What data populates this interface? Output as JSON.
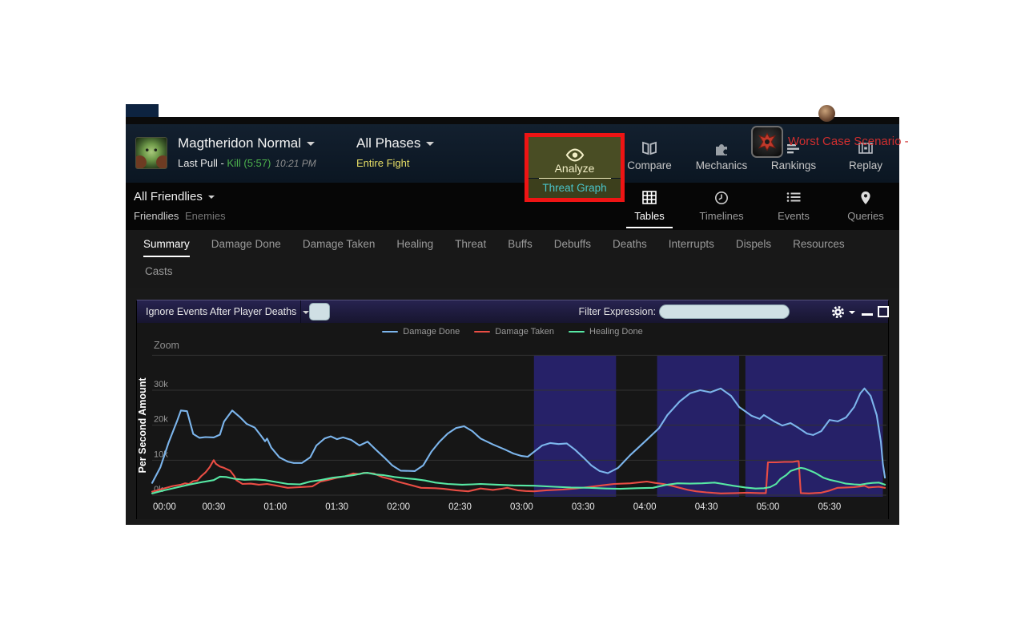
{
  "header": {
    "boss_name": "Magtheridon Normal",
    "pull_prefix": "Last Pull - ",
    "kill_text": "Kill (5:57)",
    "kill_time": "10:21 PM",
    "phase_dropdown": "All Phases",
    "phase_value": "Entire Fight",
    "guild_name": "Worst Case Scenario -",
    "buttons": {
      "analyze": "Analyze",
      "threat_graph": "Threat Graph",
      "compare": "Compare",
      "mechanics": "Mechanics",
      "rankings": "Rankings",
      "replay": "Replay"
    }
  },
  "nav": {
    "friendlies_dropdown": "All Friendlies",
    "friendlies": "Friendlies",
    "enemies": "Enemies",
    "views": [
      "Tables",
      "Timelines",
      "Events",
      "Queries"
    ]
  },
  "tabs": {
    "items": [
      "Summary",
      "Damage Done",
      "Damage Taken",
      "Healing",
      "Threat",
      "Buffs",
      "Debuffs",
      "Deaths",
      "Interrupts",
      "Dispels",
      "Resources"
    ],
    "second_row": [
      "Casts"
    ]
  },
  "panel": {
    "ignore_label": "Ignore Events After Player Deaths",
    "filter_label": "Filter Expression:",
    "filter_value": ""
  },
  "chart_data": {
    "type": "line",
    "ylabel": "Per Second Amount",
    "zoom_label": "Zoom",
    "x_unit": "mm:ss (seconds since pull)",
    "xlim": [
      0,
      357
    ],
    "ylim": [
      0,
      40000
    ],
    "y_ticks": [
      "0k",
      "10k",
      "20k",
      "30k"
    ],
    "x_ticks": [
      "00:00",
      "00:30",
      "01:00",
      "01:30",
      "02:00",
      "02:30",
      "03:00",
      "03:30",
      "04:00",
      "04:30",
      "05:00",
      "05:30"
    ],
    "grid": "horizontal",
    "legend_position": "top-center",
    "band_color": "#262168",
    "plot_bands": [
      {
        "from": 186,
        "to": 226
      },
      {
        "from": 246,
        "to": 286
      },
      {
        "from": 289,
        "to": 356
      }
    ],
    "series": [
      {
        "name": "Damage Done",
        "color": "#7cb5ec",
        "points": [
          [
            0,
            3.5
          ],
          [
            4,
            8
          ],
          [
            8,
            15
          ],
          [
            12,
            21
          ],
          [
            14,
            24.2
          ],
          [
            17,
            24
          ],
          [
            20,
            17.5
          ],
          [
            23,
            16.4
          ],
          [
            26,
            16.6
          ],
          [
            30,
            16.5
          ],
          [
            33,
            17.3
          ],
          [
            35,
            21
          ],
          [
            39,
            24.2
          ],
          [
            43,
            22.2
          ],
          [
            46,
            20.4
          ],
          [
            50,
            19.3
          ],
          [
            53,
            17
          ],
          [
            55,
            15.4
          ],
          [
            56,
            16.2
          ],
          [
            58,
            13.6
          ],
          [
            62,
            10.8
          ],
          [
            66,
            9.6
          ],
          [
            69,
            9.2
          ],
          [
            73,
            9.2
          ],
          [
            77,
            10.8
          ],
          [
            80,
            14.2
          ],
          [
            84,
            16.2
          ],
          [
            87,
            16.8
          ],
          [
            90,
            16
          ],
          [
            93,
            16.5
          ],
          [
            97,
            15.8
          ],
          [
            101,
            14.2
          ],
          [
            105,
            15.3
          ],
          [
            109,
            13
          ],
          [
            113,
            10.8
          ],
          [
            117,
            8.5
          ],
          [
            121,
            7
          ],
          [
            128,
            6.9
          ],
          [
            132,
            8.5
          ],
          [
            136,
            12.4
          ],
          [
            140,
            15.3
          ],
          [
            144,
            17.6
          ],
          [
            148,
            19.2
          ],
          [
            152,
            19.7
          ],
          [
            156,
            18.3
          ],
          [
            160,
            16.2
          ],
          [
            166,
            14.5
          ],
          [
            172,
            13
          ],
          [
            176,
            11.9
          ],
          [
            180,
            11.2
          ],
          [
            183,
            11
          ],
          [
            186,
            12.4
          ],
          [
            190,
            14.2
          ],
          [
            194,
            14.9
          ],
          [
            198,
            14.6
          ],
          [
            202,
            14.8
          ],
          [
            206,
            13
          ],
          [
            210,
            10.8
          ],
          [
            214,
            8.5
          ],
          [
            218,
            6.9
          ],
          [
            222,
            6.3
          ],
          [
            227,
            7.8
          ],
          [
            233,
            11.5
          ],
          [
            240,
            15.3
          ],
          [
            247,
            19.2
          ],
          [
            251,
            22.9
          ],
          [
            257,
            26.8
          ],
          [
            262,
            29.1
          ],
          [
            267,
            30
          ],
          [
            272,
            29.4
          ],
          [
            277,
            30.5
          ],
          [
            282,
            28.4
          ],
          [
            286,
            25.2
          ],
          [
            292,
            22.7
          ],
          [
            296,
            21.8
          ],
          [
            298,
            22.9
          ],
          [
            303,
            21.1
          ],
          [
            307,
            19.9
          ],
          [
            311,
            20.6
          ],
          [
            315,
            19.2
          ],
          [
            319,
            17.6
          ],
          [
            322,
            17.2
          ],
          [
            326,
            18.3
          ],
          [
            330,
            21.5
          ],
          [
            334,
            21.1
          ],
          [
            338,
            22.2
          ],
          [
            342,
            25.2
          ],
          [
            345,
            29.1
          ],
          [
            347,
            30.5
          ],
          [
            350,
            28.4
          ],
          [
            353,
            22.9
          ],
          [
            355,
            15.3
          ],
          [
            356,
            9
          ],
          [
            357,
            5
          ]
        ]
      },
      {
        "name": "Damage Taken",
        "color": "#ea4d44",
        "points": [
          [
            0,
            1
          ],
          [
            5,
            1.8
          ],
          [
            10,
            2.6
          ],
          [
            14,
            3
          ],
          [
            16,
            3.4
          ],
          [
            18,
            3.2
          ],
          [
            20,
            4
          ],
          [
            22,
            4.2
          ],
          [
            24,
            5.5
          ],
          [
            26,
            6.5
          ],
          [
            28,
            8
          ],
          [
            29,
            9
          ],
          [
            30,
            10
          ],
          [
            31,
            9
          ],
          [
            33,
            8.2
          ],
          [
            35,
            7.8
          ],
          [
            38,
            7
          ],
          [
            40,
            5.5
          ],
          [
            41,
            4.3
          ],
          [
            44,
            3.2
          ],
          [
            48,
            3.3
          ],
          [
            52,
            3
          ],
          [
            56,
            3.2
          ],
          [
            60,
            2.8
          ],
          [
            66,
            2.1
          ],
          [
            72,
            2.3
          ],
          [
            78,
            2.5
          ],
          [
            82,
            3.9
          ],
          [
            86,
            4.4
          ],
          [
            90,
            5
          ],
          [
            94,
            5.4
          ],
          [
            98,
            6.2
          ],
          [
            101,
            6
          ],
          [
            103,
            6.4
          ],
          [
            108,
            6.2
          ],
          [
            112,
            5.2
          ],
          [
            116,
            4.6
          ],
          [
            120,
            3.8
          ],
          [
            124,
            3.2
          ],
          [
            131,
            2.1
          ],
          [
            138,
            2
          ],
          [
            142,
            1.8
          ],
          [
            148,
            1.4
          ],
          [
            154,
            1.1
          ],
          [
            160,
            1.9
          ],
          [
            166,
            1.5
          ],
          [
            170,
            1.8
          ],
          [
            173,
            2.1
          ],
          [
            178,
            1.4
          ],
          [
            182,
            1.2
          ],
          [
            186,
            1.1
          ],
          [
            192,
            1.4
          ],
          [
            200,
            1.6
          ],
          [
            206,
            1.9
          ],
          [
            212,
            2.3
          ],
          [
            219,
            2.8
          ],
          [
            225,
            3.2
          ],
          [
            233,
            3.4
          ],
          [
            238,
            3.7
          ],
          [
            241,
            3.9
          ],
          [
            245,
            3.5
          ],
          [
            249,
            3.2
          ],
          [
            253,
            2.7
          ],
          [
            257,
            2.1
          ],
          [
            261,
            1.5
          ],
          [
            265,
            1.1
          ],
          [
            270,
            0.8
          ],
          [
            277,
            0.5
          ],
          [
            284,
            0.6
          ],
          [
            290,
            0.7
          ],
          [
            296,
            0.6
          ],
          [
            299,
            0.6
          ],
          [
            300,
            9.4
          ],
          [
            304,
            9.4
          ],
          [
            308,
            9.5
          ],
          [
            312,
            9.5
          ],
          [
            314,
            9.7
          ],
          [
            315,
            9.7
          ],
          [
            316,
            0.6
          ],
          [
            320,
            0.5
          ],
          [
            326,
            0.7
          ],
          [
            330,
            1.3
          ],
          [
            334,
            2.1
          ],
          [
            338,
            2.2
          ],
          [
            342,
            2.3
          ],
          [
            345,
            2.5
          ],
          [
            347,
            2.7
          ],
          [
            349,
            2.2
          ],
          [
            351,
            2.3
          ],
          [
            354,
            2.4
          ],
          [
            357,
            2.1
          ]
        ]
      },
      {
        "name": "Healing Done",
        "color": "#57e8a4",
        "points": [
          [
            0,
            0.5
          ],
          [
            6,
            1.4
          ],
          [
            12,
            2.2
          ],
          [
            18,
            3
          ],
          [
            24,
            3.7
          ],
          [
            30,
            4.3
          ],
          [
            33,
            5.3
          ],
          [
            36,
            5.2
          ],
          [
            40,
            4.7
          ],
          [
            45,
            4.4
          ],
          [
            50,
            4.5
          ],
          [
            55,
            4.3
          ],
          [
            60,
            3.8
          ],
          [
            66,
            3.2
          ],
          [
            72,
            3.1
          ],
          [
            77,
            3.9
          ],
          [
            82,
            4.3
          ],
          [
            88,
            5
          ],
          [
            94,
            5.4
          ],
          [
            98,
            5.7
          ],
          [
            103,
            6.3
          ],
          [
            105,
            6.4
          ],
          [
            109,
            5.9
          ],
          [
            113,
            5.7
          ],
          [
            118,
            5.2
          ],
          [
            124,
            4.8
          ],
          [
            128,
            4.6
          ],
          [
            133,
            4.2
          ],
          [
            138,
            3.6
          ],
          [
            144,
            3.2
          ],
          [
            151,
            3
          ],
          [
            156,
            3.1
          ],
          [
            160,
            3.2
          ],
          [
            168,
            3
          ],
          [
            176,
            2.8
          ],
          [
            186,
            2.7
          ],
          [
            196,
            2.4
          ],
          [
            204,
            2.2
          ],
          [
            213,
            2.1
          ],
          [
            221,
            1.9
          ],
          [
            228,
            1.8
          ],
          [
            236,
            2
          ],
          [
            244,
            2.1
          ],
          [
            250,
            2.9
          ],
          [
            256,
            3.4
          ],
          [
            262,
            3.3
          ],
          [
            268,
            3.4
          ],
          [
            274,
            3.6
          ],
          [
            278,
            3.2
          ],
          [
            283,
            2.7
          ],
          [
            289,
            2.2
          ],
          [
            294,
            1.9
          ],
          [
            298,
            2
          ],
          [
            301,
            2.3
          ],
          [
            304,
            3.2
          ],
          [
            306,
            4.6
          ],
          [
            309,
            5.8
          ],
          [
            311,
            6.9
          ],
          [
            314,
            7.5
          ],
          [
            316,
            7.8
          ],
          [
            318,
            7.6
          ],
          [
            321,
            6.9
          ],
          [
            323,
            6.4
          ],
          [
            327,
            5
          ],
          [
            330,
            4.4
          ],
          [
            334,
            3.9
          ],
          [
            338,
            3.3
          ],
          [
            342,
            3.1
          ],
          [
            345,
            3
          ],
          [
            348,
            3.3
          ],
          [
            351,
            3.5
          ],
          [
            354,
            3.6
          ],
          [
            357,
            3
          ]
        ]
      }
    ]
  }
}
